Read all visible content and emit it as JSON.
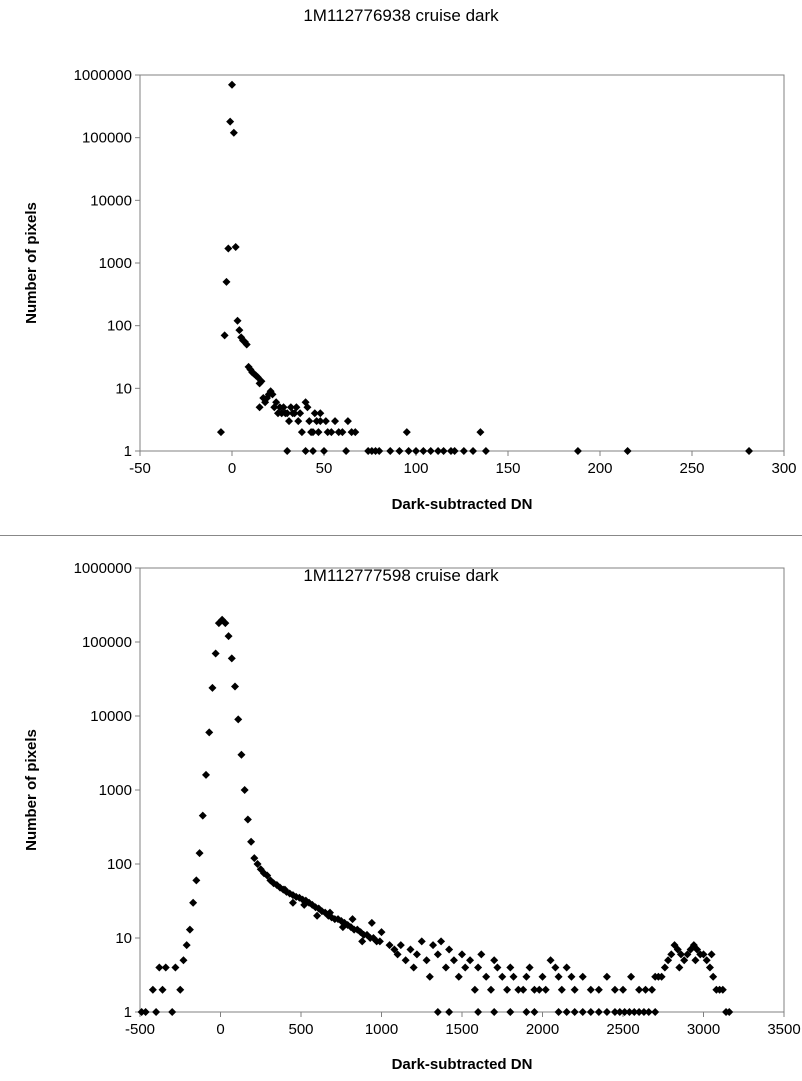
{
  "chart_data": [
    {
      "type": "scatter",
      "title": "1M112776938 cruise dark",
      "xlabel": "Dark-subtracted DN",
      "ylabel": "Number of pixels",
      "xlim": [
        -50,
        300
      ],
      "ylim": [
        1,
        1000000
      ],
      "yscale": "log",
      "xticks": [
        -50,
        0,
        50,
        100,
        150,
        200,
        250,
        300
      ],
      "yticks": [
        1,
        10,
        100,
        1000,
        10000,
        100000,
        1000000
      ],
      "grid": false,
      "marker": "diamond",
      "points": [
        [
          -6,
          2
        ],
        [
          -4,
          70
        ],
        [
          -3,
          500
        ],
        [
          -2,
          1700
        ],
        [
          -1,
          180000
        ],
        [
          0,
          700000
        ],
        [
          1,
          120000
        ],
        [
          2,
          1800
        ],
        [
          3,
          120
        ],
        [
          4,
          85
        ],
        [
          5,
          65
        ],
        [
          6,
          58
        ],
        [
          7,
          55
        ],
        [
          8,
          50
        ],
        [
          9,
          22
        ],
        [
          10,
          20
        ],
        [
          11,
          18
        ],
        [
          12,
          17
        ],
        [
          13,
          16
        ],
        [
          14,
          15
        ],
        [
          15,
          12
        ],
        [
          16,
          13
        ],
        [
          15,
          5
        ],
        [
          17,
          7
        ],
        [
          18,
          6
        ],
        [
          19,
          7
        ],
        [
          20,
          8
        ],
        [
          21,
          9
        ],
        [
          22,
          8
        ],
        [
          23,
          5
        ],
        [
          24,
          6
        ],
        [
          25,
          4
        ],
        [
          26,
          5
        ],
        [
          27,
          4
        ],
        [
          28,
          5
        ],
        [
          29,
          4
        ],
        [
          30,
          4
        ],
        [
          31,
          3
        ],
        [
          32,
          5
        ],
        [
          33,
          4
        ],
        [
          34,
          4
        ],
        [
          35,
          5
        ],
        [
          36,
          3
        ],
        [
          37,
          4
        ],
        [
          38,
          2
        ],
        [
          40,
          6
        ],
        [
          41,
          5
        ],
        [
          42,
          3
        ],
        [
          43,
          2
        ],
        [
          44,
          2
        ],
        [
          45,
          4
        ],
        [
          46,
          3
        ],
        [
          47,
          2
        ],
        [
          48,
          3
        ],
        [
          30,
          1
        ],
        [
          40,
          1
        ],
        [
          44,
          1
        ],
        [
          48,
          4
        ],
        [
          50,
          1
        ],
        [
          51,
          3
        ],
        [
          52,
          2
        ],
        [
          54,
          2
        ],
        [
          56,
          3
        ],
        [
          58,
          2
        ],
        [
          60,
          2
        ],
        [
          62,
          1
        ],
        [
          63,
          3
        ],
        [
          65,
          2
        ],
        [
          67,
          2
        ],
        [
          74,
          1
        ],
        [
          76,
          1
        ],
        [
          78,
          1
        ],
        [
          80,
          1
        ],
        [
          86,
          1
        ],
        [
          91,
          1
        ],
        [
          95,
          2
        ],
        [
          96,
          1
        ],
        [
          100,
          1
        ],
        [
          104,
          1
        ],
        [
          108,
          1
        ],
        [
          112,
          1
        ],
        [
          115,
          1
        ],
        [
          119,
          1
        ],
        [
          121,
          1
        ],
        [
          126,
          1
        ],
        [
          131,
          1
        ],
        [
          135,
          2
        ],
        [
          138,
          1
        ],
        [
          188,
          1
        ],
        [
          215,
          1
        ],
        [
          281,
          1
        ]
      ]
    },
    {
      "type": "scatter",
      "title": "1M112777598 cruise dark",
      "xlabel": "Dark-subtracted DN",
      "ylabel": "Number of pixels",
      "xlim": [
        -500,
        3500
      ],
      "ylim": [
        1,
        1000000
      ],
      "yscale": "log",
      "xticks": [
        -500,
        0,
        500,
        1000,
        1500,
        2000,
        2500,
        3000,
        3500
      ],
      "yticks": [
        1,
        10,
        100,
        1000,
        10000,
        100000,
        1000000
      ],
      "grid": false,
      "marker": "diamond",
      "points": [
        [
          -490,
          1
        ],
        [
          -465,
          1
        ],
        [
          -420,
          2
        ],
        [
          -400,
          1
        ],
        [
          -380,
          4
        ],
        [
          -360,
          2
        ],
        [
          -340,
          4
        ],
        [
          -300,
          1
        ],
        [
          -280,
          4
        ],
        [
          -250,
          2
        ],
        [
          -230,
          5
        ],
        [
          -210,
          8
        ],
        [
          -190,
          13
        ],
        [
          -170,
          30
        ],
        [
          -150,
          60
        ],
        [
          -130,
          140
        ],
        [
          -110,
          450
        ],
        [
          -90,
          1600
        ],
        [
          -70,
          6000
        ],
        [
          -50,
          24000
        ],
        [
          -30,
          70000
        ],
        [
          -10,
          180000
        ],
        [
          10,
          200000
        ],
        [
          30,
          180000
        ],
        [
          50,
          120000
        ],
        [
          70,
          60000
        ],
        [
          90,
          25000
        ],
        [
          110,
          9000
        ],
        [
          130,
          3000
        ],
        [
          150,
          1000
        ],
        [
          170,
          400
        ],
        [
          190,
          200
        ],
        [
          210,
          120
        ],
        [
          230,
          100
        ],
        [
          250,
          85
        ],
        [
          270,
          75
        ],
        [
          290,
          70
        ],
        [
          310,
          60
        ],
        [
          330,
          55
        ],
        [
          350,
          52
        ],
        [
          370,
          48
        ],
        [
          390,
          45
        ],
        [
          410,
          42
        ],
        [
          430,
          40
        ],
        [
          450,
          38
        ],
        [
          470,
          36
        ],
        [
          490,
          35
        ],
        [
          510,
          33
        ],
        [
          530,
          32
        ],
        [
          550,
          30
        ],
        [
          570,
          28
        ],
        [
          590,
          26
        ],
        [
          610,
          25
        ],
        [
          630,
          23
        ],
        [
          650,
          22
        ],
        [
          670,
          20
        ],
        [
          690,
          19
        ],
        [
          710,
          18
        ],
        [
          730,
          18
        ],
        [
          750,
          17
        ],
        [
          770,
          16
        ],
        [
          790,
          15
        ],
        [
          810,
          14
        ],
        [
          830,
          13
        ],
        [
          850,
          13
        ],
        [
          870,
          12
        ],
        [
          890,
          11
        ],
        [
          910,
          11
        ],
        [
          930,
          10
        ],
        [
          950,
          10
        ],
        [
          970,
          9
        ],
        [
          990,
          9
        ],
        [
          400,
          45
        ],
        [
          450,
          30
        ],
        [
          520,
          28
        ],
        [
          600,
          20
        ],
        [
          680,
          22
        ],
        [
          760,
          14
        ],
        [
          820,
          18
        ],
        [
          880,
          9
        ],
        [
          940,
          16
        ],
        [
          1000,
          12
        ],
        [
          1050,
          8
        ],
        [
          1080,
          7
        ],
        [
          1100,
          6
        ],
        [
          1120,
          8
        ],
        [
          1150,
          5
        ],
        [
          1180,
          7
        ],
        [
          1200,
          4
        ],
        [
          1220,
          6
        ],
        [
          1250,
          9
        ],
        [
          1280,
          5
        ],
        [
          1300,
          3
        ],
        [
          1320,
          8
        ],
        [
          1350,
          6
        ],
        [
          1370,
          9
        ],
        [
          1400,
          4
        ],
        [
          1420,
          7
        ],
        [
          1450,
          5
        ],
        [
          1480,
          3
        ],
        [
          1500,
          6
        ],
        [
          1520,
          4
        ],
        [
          1550,
          5
        ],
        [
          1580,
          2
        ],
        [
          1600,
          4
        ],
        [
          1620,
          6
        ],
        [
          1650,
          3
        ],
        [
          1680,
          2
        ],
        [
          1700,
          5
        ],
        [
          1720,
          4
        ],
        [
          1750,
          3
        ],
        [
          1780,
          2
        ],
        [
          1800,
          4
        ],
        [
          1820,
          3
        ],
        [
          1850,
          2
        ],
        [
          1880,
          2
        ],
        [
          1900,
          3
        ],
        [
          1920,
          4
        ],
        [
          1950,
          2
        ],
        [
          1980,
          2
        ],
        [
          2000,
          3
        ],
        [
          2020,
          2
        ],
        [
          2050,
          5
        ],
        [
          2080,
          4
        ],
        [
          2100,
          3
        ],
        [
          2120,
          2
        ],
        [
          2150,
          4
        ],
        [
          2180,
          3
        ],
        [
          2200,
          2
        ],
        [
          2250,
          3
        ],
        [
          2300,
          2
        ],
        [
          2350,
          2
        ],
        [
          2400,
          3
        ],
        [
          2450,
          2
        ],
        [
          2500,
          2
        ],
        [
          2550,
          3
        ],
        [
          1350,
          1
        ],
        [
          1420,
          1
        ],
        [
          1600,
          1
        ],
        [
          1700,
          1
        ],
        [
          1800,
          1
        ],
        [
          1900,
          1
        ],
        [
          1950,
          1
        ],
        [
          2100,
          1
        ],
        [
          2150,
          1
        ],
        [
          2200,
          1
        ],
        [
          2250,
          1
        ],
        [
          2300,
          1
        ],
        [
          2350,
          1
        ],
        [
          2400,
          1
        ],
        [
          2450,
          1
        ],
        [
          2480,
          1
        ],
        [
          2510,
          1
        ],
        [
          2540,
          1
        ],
        [
          2570,
          1
        ],
        [
          2600,
          1
        ],
        [
          2630,
          1
        ],
        [
          2660,
          1
        ],
        [
          2700,
          1
        ],
        [
          2600,
          2
        ],
        [
          2640,
          2
        ],
        [
          2680,
          2
        ],
        [
          2700,
          3
        ],
        [
          2720,
          3
        ],
        [
          2740,
          3
        ],
        [
          2760,
          4
        ],
        [
          2780,
          5
        ],
        [
          2800,
          6
        ],
        [
          2820,
          8
        ],
        [
          2840,
          7
        ],
        [
          2860,
          6
        ],
        [
          2880,
          5
        ],
        [
          2900,
          6
        ],
        [
          2920,
          7
        ],
        [
          2940,
          8
        ],
        [
          2960,
          7
        ],
        [
          2980,
          6
        ],
        [
          3000,
          6
        ],
        [
          3020,
          5
        ],
        [
          3040,
          4
        ],
        [
          3060,
          3
        ],
        [
          3080,
          2
        ],
        [
          3100,
          2
        ],
        [
          3120,
          2
        ],
        [
          3140,
          1
        ],
        [
          3160,
          1
        ],
        [
          3050,
          6
        ],
        [
          2850,
          4
        ],
        [
          2950,
          5
        ]
      ]
    }
  ]
}
